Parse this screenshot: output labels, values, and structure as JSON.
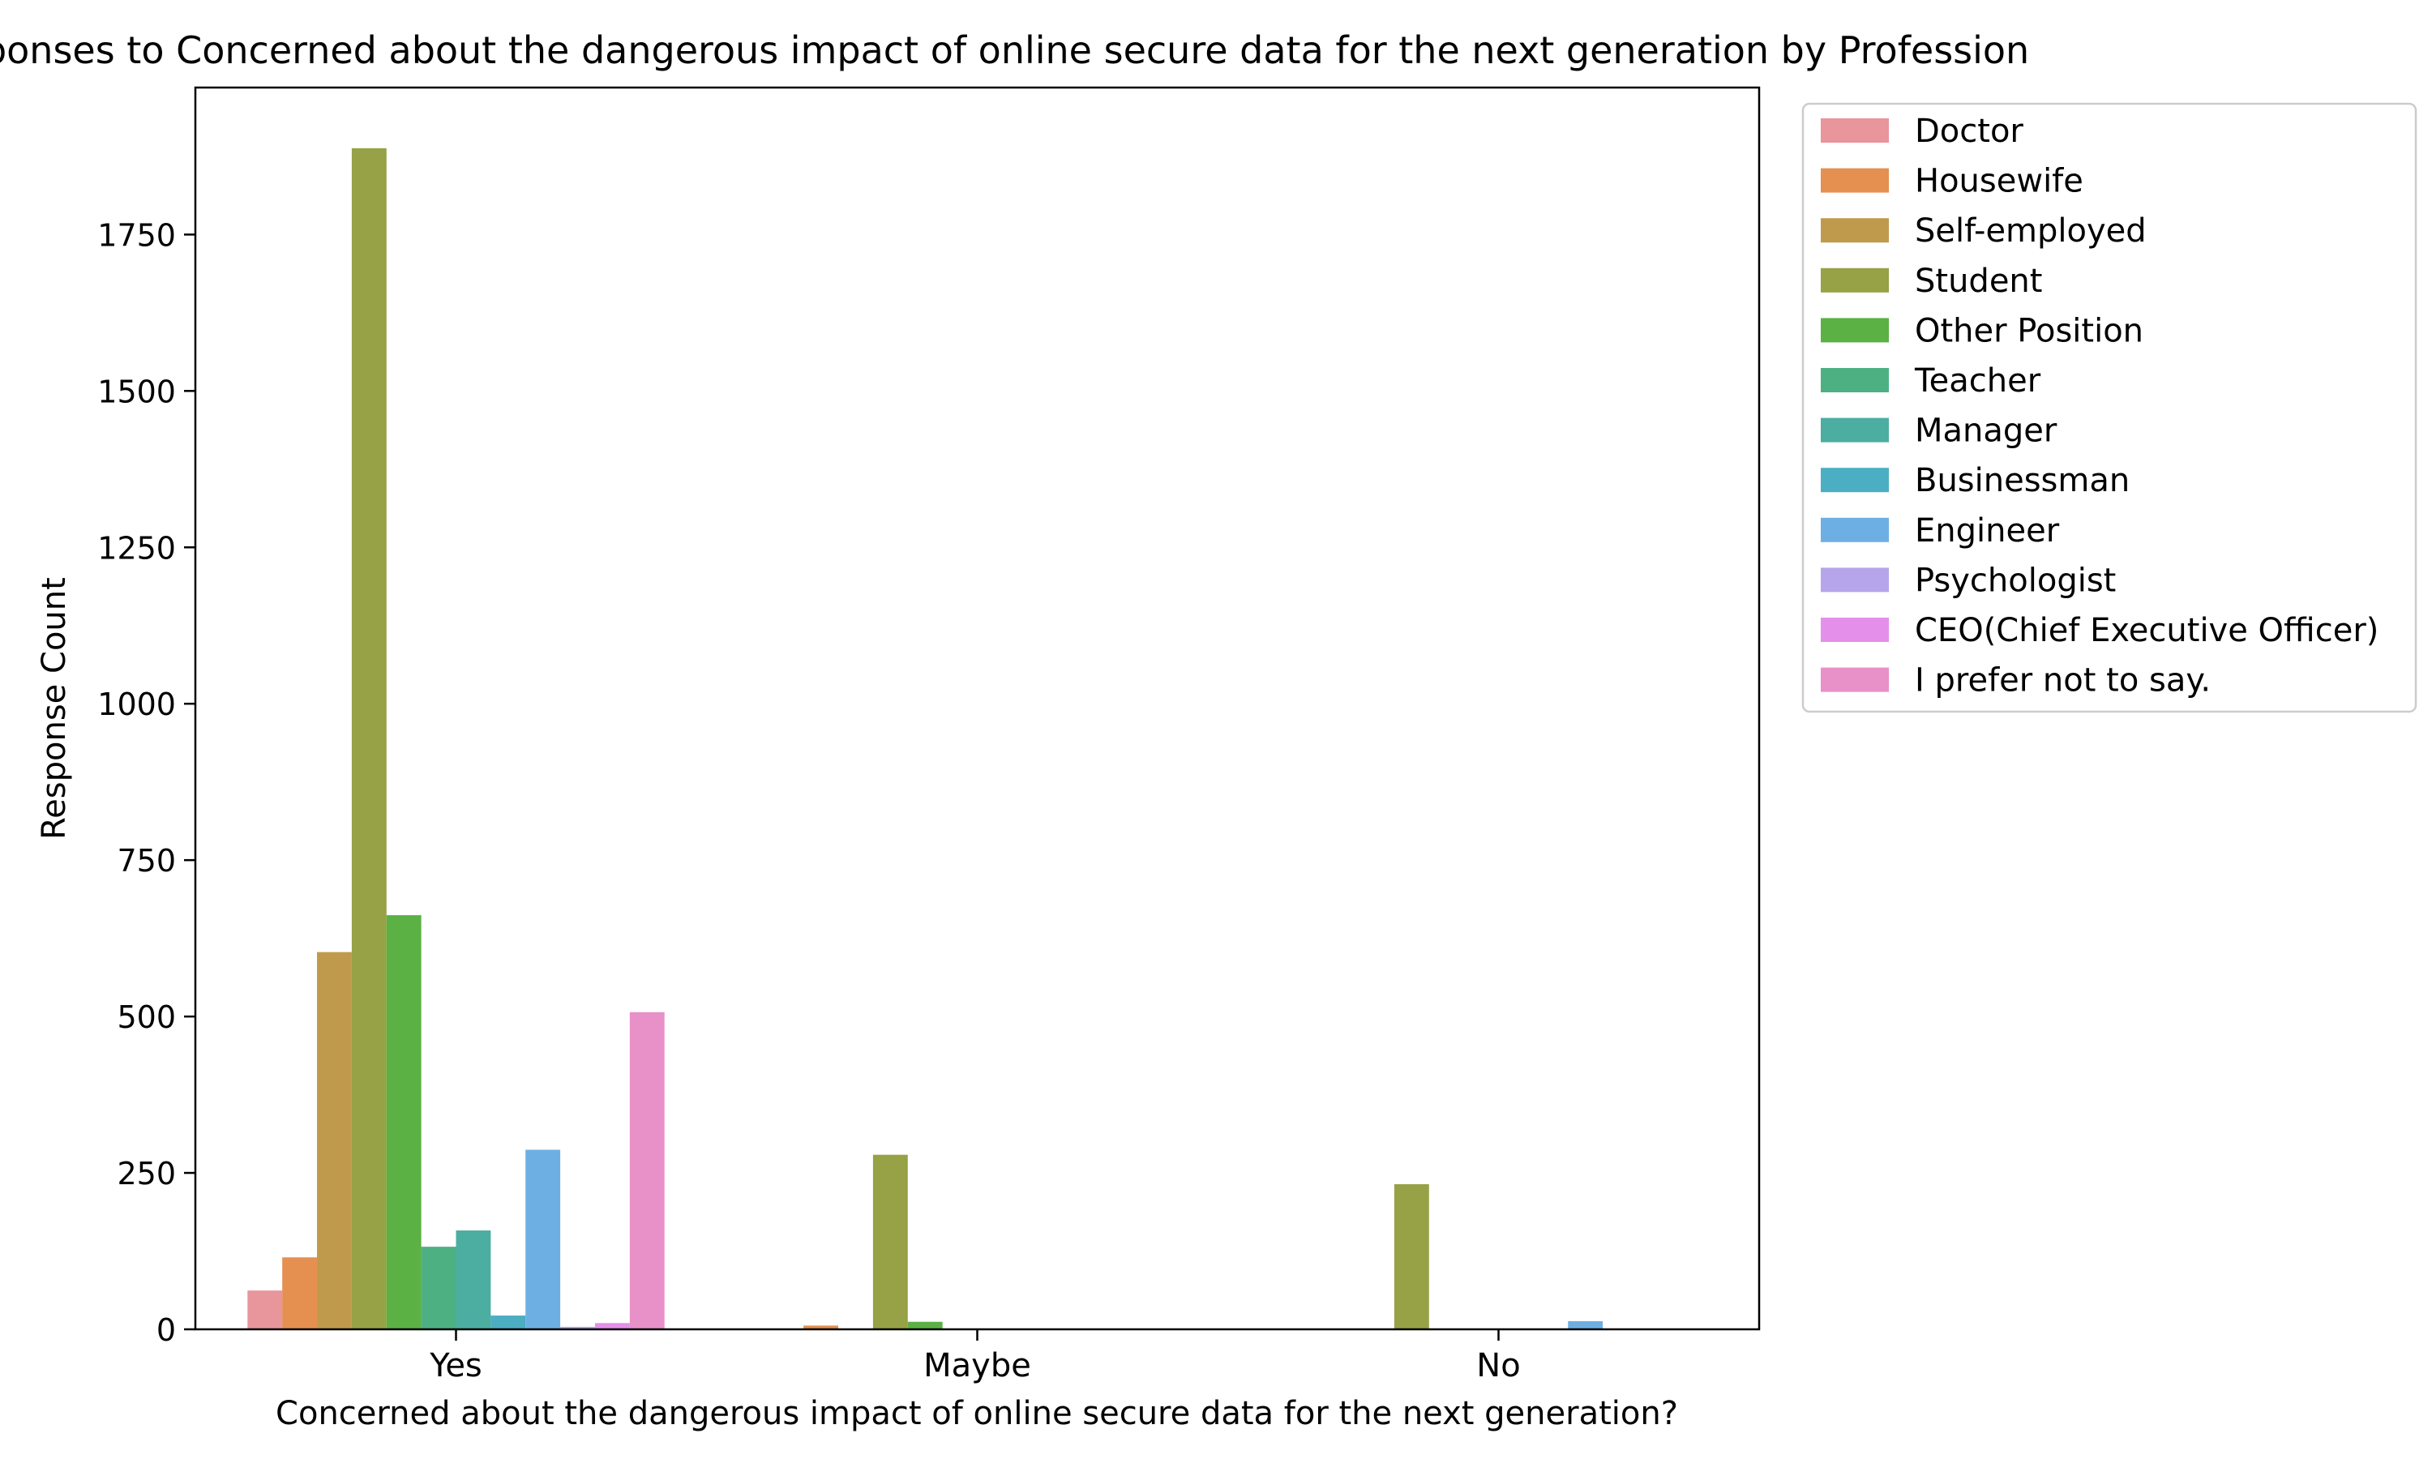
{
  "chart_data": {
    "type": "bar",
    "title": "Responses to Concerned about the dangerous impact of online secure data for the next generation by Profession",
    "xlabel": "Concerned about the dangerous impact of online secure data for the next generation?",
    "ylabel": "Response Count",
    "categories": [
      "Yes",
      "Maybe",
      "No"
    ],
    "ylim": [
      0,
      1985
    ],
    "yticks": [
      0,
      250,
      500,
      750,
      1000,
      1250,
      1500,
      1750
    ],
    "grid": false,
    "legend_position": "outside-top-right",
    "series": [
      {
        "name": "Doctor",
        "color": "#e8959c",
        "values": [
          62,
          0,
          0
        ]
      },
      {
        "name": "Housewife",
        "color": "#e58f50",
        "values": [
          115,
          6,
          0
        ]
      },
      {
        "name": "Self-employed",
        "color": "#c09a4c",
        "values": [
          603,
          0,
          0
        ]
      },
      {
        "name": "Student",
        "color": "#97a145",
        "values": [
          1888,
          279,
          232
        ]
      },
      {
        "name": "Other Position",
        "color": "#5bb143",
        "values": [
          662,
          12,
          0
        ]
      },
      {
        "name": "Teacher",
        "color": "#4db083",
        "values": [
          132,
          0,
          0
        ]
      },
      {
        "name": "Manager",
        "color": "#4cada1",
        "values": [
          158,
          0,
          0
        ]
      },
      {
        "name": "Businessman",
        "color": "#4caec2",
        "values": [
          22,
          0,
          0
        ]
      },
      {
        "name": "Engineer",
        "color": "#6eafe3",
        "values": [
          287,
          0,
          13
        ]
      },
      {
        "name": "Psychologist",
        "color": "#b6a5eb",
        "values": [
          4,
          0,
          0
        ]
      },
      {
        "name": "CEO(Chief Executive Officer)",
        "color": "#e490ea",
        "values": [
          10,
          0,
          0
        ]
      },
      {
        "name": "I prefer not to say.",
        "color": "#e890c8",
        "values": [
          507,
          0,
          0
        ]
      }
    ]
  }
}
